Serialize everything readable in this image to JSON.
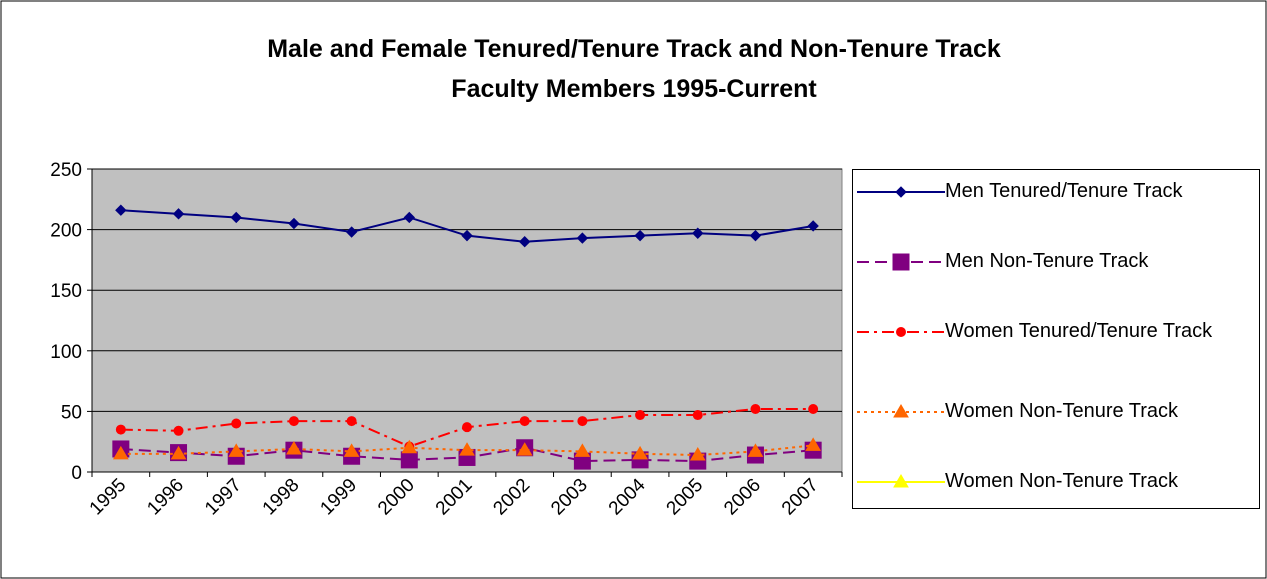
{
  "chart_data": {
    "type": "line",
    "title": [
      "Male and Female Tenured/Tenure Track and Non-Tenure Track",
      "Faculty Members 1995-Current"
    ],
    "categories": [
      "1995",
      "1996",
      "1997",
      "1998",
      "1999",
      "2000",
      "2001",
      "2002",
      "2003",
      "2004",
      "2005",
      "2006",
      "2007"
    ],
    "series": [
      {
        "name": "Men Tenured/Tenure Track",
        "color": "#000080",
        "marker": "diamond",
        "dash": "solid",
        "values": [
          216,
          213,
          210,
          205,
          198,
          210,
          195,
          190,
          193,
          195,
          197,
          195,
          203
        ]
      },
      {
        "name": "Men Non-Tenure Track",
        "color": "#800080",
        "marker": "square",
        "dash": "dash",
        "values": [
          19,
          16,
          13,
          18,
          13,
          10,
          12,
          20,
          9,
          10,
          9,
          14,
          18
        ]
      },
      {
        "name": "Women Tenured/Tenure Track",
        "color": "#ff0000",
        "marker": "circle",
        "dash": "dashdot",
        "values": [
          35,
          34,
          40,
          42,
          42,
          21,
          37,
          42,
          42,
          47,
          47,
          52,
          52
        ]
      },
      {
        "name": "Women Non-Tenure Track",
        "color": "#ff6600",
        "marker": "triangle",
        "dash": "dot",
        "values": [
          15,
          15,
          17,
          19,
          17,
          20,
          18,
          18,
          17,
          15,
          14,
          17,
          22
        ]
      },
      {
        "name": "Women Non-Tenure Track",
        "color": "#ffff00",
        "marker": "triangle",
        "dash": "solid",
        "values": [
          null,
          null,
          null,
          null,
          null,
          null,
          null,
          null,
          null,
          null,
          null,
          null,
          null
        ]
      }
    ],
    "ylim": [
      0,
      250
    ],
    "yticks": [
      0,
      50,
      100,
      150,
      200,
      250
    ],
    "grid": true,
    "legend": "right"
  }
}
